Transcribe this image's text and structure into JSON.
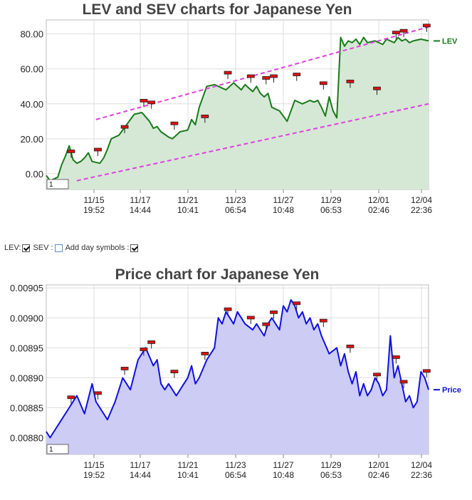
{
  "chart_data": [
    {
      "type": "area",
      "title": "LEV and SEV charts for Japanese Yen",
      "ylim": [
        -9,
        88
      ],
      "yticks": [
        "0.00",
        "20.00",
        "40.00",
        "60.00",
        "80.00"
      ],
      "ytick_values": [
        0,
        20,
        40,
        60,
        80
      ],
      "x_dates": [
        "11/15",
        "11/17",
        "11/21",
        "11/23",
        "11/27",
        "11/29",
        "12/01",
        "12/04"
      ],
      "x_times": [
        "19:52",
        "14:44",
        "10:41",
        "06:54",
        "10:48",
        "06:53",
        "02:46",
        "22:36"
      ],
      "grid": true,
      "legend": "right",
      "series": [
        {
          "name": "LEV",
          "color": "#1a7a1a",
          "fill": "#d5e8d5",
          "x": [
            0,
            1,
            3,
            4,
            5,
            6,
            7,
            8,
            9,
            10,
            11,
            12,
            14,
            15,
            16,
            17,
            19,
            21,
            23,
            25,
            27,
            28,
            29,
            30,
            32,
            33,
            34,
            35,
            37,
            38,
            39,
            40,
            42,
            44,
            45,
            46,
            47,
            49,
            50,
            51,
            52,
            53,
            54,
            55,
            56,
            57,
            58,
            59,
            61,
            63,
            65,
            67,
            69,
            70,
            71,
            72,
            73,
            74,
            75,
            76,
            77,
            78,
            79,
            80,
            81,
            82,
            83,
            84,
            86,
            88,
            89,
            90,
            91,
            92,
            93,
            94,
            95,
            96,
            98,
            100
          ],
          "values": [
            -1,
            -4,
            -2,
            5,
            10,
            16,
            8,
            6,
            7,
            9,
            12,
            7,
            6,
            9,
            14,
            20,
            22,
            28,
            34,
            35,
            30,
            26,
            27,
            24,
            21,
            20,
            22,
            24,
            25,
            31,
            28,
            38,
            50,
            51,
            50,
            49,
            48,
            52,
            50,
            48,
            51,
            49,
            47,
            50,
            46,
            44,
            46,
            38,
            36,
            30,
            42,
            40,
            42,
            41,
            42,
            38,
            33,
            44,
            36,
            32,
            78,
            73,
            76,
            75,
            77,
            74,
            78,
            75,
            76,
            74,
            77,
            76,
            75,
            78,
            76,
            77,
            75,
            76,
            77,
            76
          ]
        }
      ],
      "trend_lines": [
        {
          "name": "upper",
          "color": "#e040e0",
          "x": [
            13,
            100
          ],
          "values": [
            31,
            84
          ]
        },
        {
          "name": "lower",
          "color": "#e040e0",
          "x": [
            8,
            100
          ],
          "values": [
            -4,
            40
          ]
        }
      ],
      "markers": [
        {
          "x": 6.5,
          "y": 12
        },
        {
          "x": 13.5,
          "y": 13
        },
        {
          "x": 20.5,
          "y": 26
        },
        {
          "x": 25.5,
          "y": 41
        },
        {
          "x": 27.5,
          "y": 40
        },
        {
          "x": 33.5,
          "y": 28
        },
        {
          "x": 41.5,
          "y": 32
        },
        {
          "x": 47.5,
          "y": 57
        },
        {
          "x": 53.5,
          "y": 55
        },
        {
          "x": 57.5,
          "y": 54
        },
        {
          "x": 59.5,
          "y": 55
        },
        {
          "x": 65.5,
          "y": 56
        },
        {
          "x": 72.5,
          "y": 51
        },
        {
          "x": 79.5,
          "y": 52
        },
        {
          "x": 86.5,
          "y": 48
        },
        {
          "x": 91.5,
          "y": 80
        },
        {
          "x": 93.5,
          "y": 81
        },
        {
          "x": 99.5,
          "y": 84
        }
      ],
      "input_value": "1"
    },
    {
      "type": "area",
      "title": "Price chart for Japanese Yen",
      "ylim": [
        0.008772,
        0.009055
      ],
      "yticks": [
        "0.00880",
        "0.00885",
        "0.00890",
        "0.00895",
        "0.00900",
        "0.00905"
      ],
      "ytick_values": [
        0.0088,
        0.00885,
        0.0089,
        0.00895,
        0.009,
        0.00905
      ],
      "x_dates": [
        "11/15",
        "11/17",
        "11/21",
        "11/23",
        "11/27",
        "11/29",
        "12/01",
        "12/04"
      ],
      "x_times": [
        "19:52",
        "14:44",
        "10:41",
        "06:54",
        "10:48",
        "06:53",
        "02:46",
        "22:36"
      ],
      "grid": true,
      "legend": "right",
      "series": [
        {
          "name": "Price",
          "color": "#1010e0",
          "fill": "#ccccf4",
          "x": [
            0,
            1,
            2,
            4,
            6,
            8,
            10,
            12,
            13,
            14,
            15,
            16,
            18,
            20,
            21,
            22,
            24,
            26,
            28,
            29,
            30,
            31,
            32,
            34,
            36,
            37,
            38,
            39,
            40,
            42,
            44,
            45,
            46,
            47,
            48,
            49,
            50,
            51,
            52,
            54,
            55,
            56,
            57,
            58,
            59,
            60,
            61,
            62,
            63,
            64,
            65,
            66,
            67,
            68,
            69,
            70,
            71,
            72,
            74,
            76,
            77,
            78,
            79,
            80,
            81,
            82,
            83,
            84,
            85,
            86,
            87,
            88,
            89,
            90,
            91,
            92,
            93,
            94,
            95,
            96,
            97,
            98,
            99,
            100
          ],
          "values": [
            0.00881,
            0.0088,
            0.00881,
            0.00883,
            0.00885,
            0.00887,
            0.00884,
            0.00889,
            0.00886,
            0.00885,
            0.00884,
            0.00883,
            0.00886,
            0.0089,
            0.00889,
            0.00888,
            0.00893,
            0.00895,
            0.00892,
            0.00893,
            0.00889,
            0.00888,
            0.00889,
            0.00887,
            0.00889,
            0.0089,
            0.00892,
            0.00889,
            0.0089,
            0.00893,
            0.00895,
            0.009,
            0.00899,
            0.00901,
            0.009,
            0.00899,
            0.00901,
            0.009,
            0.00899,
            0.00898,
            0.00899,
            0.00898,
            0.00897,
            0.00899,
            0.009,
            0.00899,
            0.00898,
            0.00902,
            0.00901,
            0.00903,
            0.00902,
            0.009,
            0.00901,
            0.00899,
            0.009,
            0.00898,
            0.00899,
            0.00897,
            0.00894,
            0.00895,
            0.00892,
            0.00894,
            0.00891,
            0.00889,
            0.00891,
            0.00887,
            0.00889,
            0.00887,
            0.00888,
            0.0089,
            0.00889,
            0.00887,
            0.00888,
            0.00897,
            0.0089,
            0.00892,
            0.00889,
            0.00886,
            0.00887,
            0.00885,
            0.00886,
            0.00891,
            0.0089,
            0.00888
          ]
        }
      ],
      "markers": [
        {
          "x": 6.5,
          "y": 0.008865
        },
        {
          "x": 13.5,
          "y": 0.008872
        },
        {
          "x": 20.5,
          "y": 0.008913
        },
        {
          "x": 25.5,
          "y": 0.008945
        },
        {
          "x": 27.5,
          "y": 0.008957
        },
        {
          "x": 33.5,
          "y": 0.008908
        },
        {
          "x": 41.5,
          "y": 0.008938
        },
        {
          "x": 47.5,
          "y": 0.009012
        },
        {
          "x": 53.5,
          "y": 0.008998
        },
        {
          "x": 57.5,
          "y": 0.008987
        },
        {
          "x": 59.5,
          "y": 0.009007
        },
        {
          "x": 65.5,
          "y": 0.009022
        },
        {
          "x": 72.5,
          "y": 0.008993
        },
        {
          "x": 79.5,
          "y": 0.00895
        },
        {
          "x": 86.5,
          "y": 0.008903
        },
        {
          "x": 91.5,
          "y": 0.008932
        },
        {
          "x": 93.5,
          "y": 0.008891
        },
        {
          "x": 99.5,
          "y": 0.008909
        }
      ],
      "input_value": "1"
    }
  ],
  "controls": {
    "lev_label": "LEV:",
    "sev_label": "SEV :",
    "day_label": "Add day symbols :",
    "lev_checked": true,
    "sev_checked": false,
    "day_checked": true
  }
}
